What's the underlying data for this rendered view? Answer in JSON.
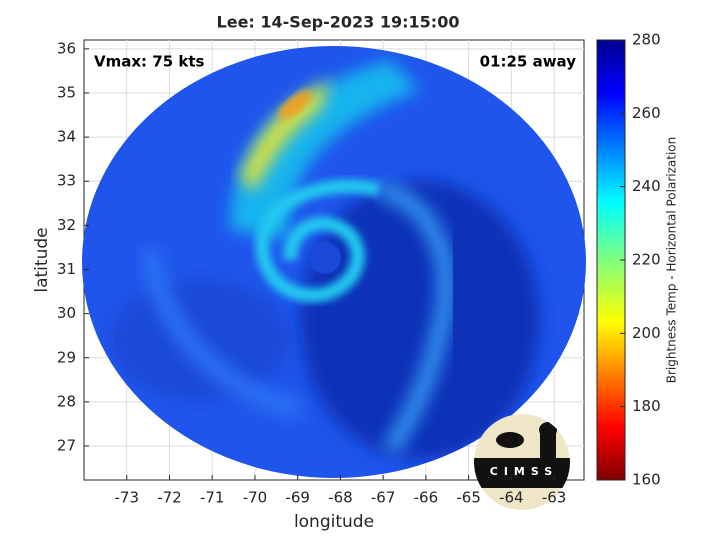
{
  "chart_data": {
    "type": "image",
    "title": "Lee: 14-Sep-2023 19:15:00",
    "x_label": "longitude",
    "y_label": "latitude",
    "annotations": [
      "Vmax: 75 kts",
      "01:25 away"
    ],
    "logo_text": "CIMSS",
    "xlim": [
      -74.0,
      -62.3
    ],
    "xticks": [
      -73,
      -72,
      -71,
      -70,
      -69,
      -68,
      -67,
      -66,
      -65,
      -64,
      -63
    ],
    "ylim": [
      26.23,
      36.2
    ],
    "yticks": [
      27,
      28,
      29,
      30,
      31,
      32,
      33,
      34,
      35,
      36
    ],
    "grid": true,
    "colorbar": {
      "label": "Brightness Temp - Horizontal Polarization",
      "lim": [
        160,
        280
      ],
      "ticks": [
        160,
        180,
        200,
        220,
        240,
        260,
        280
      ]
    }
  }
}
